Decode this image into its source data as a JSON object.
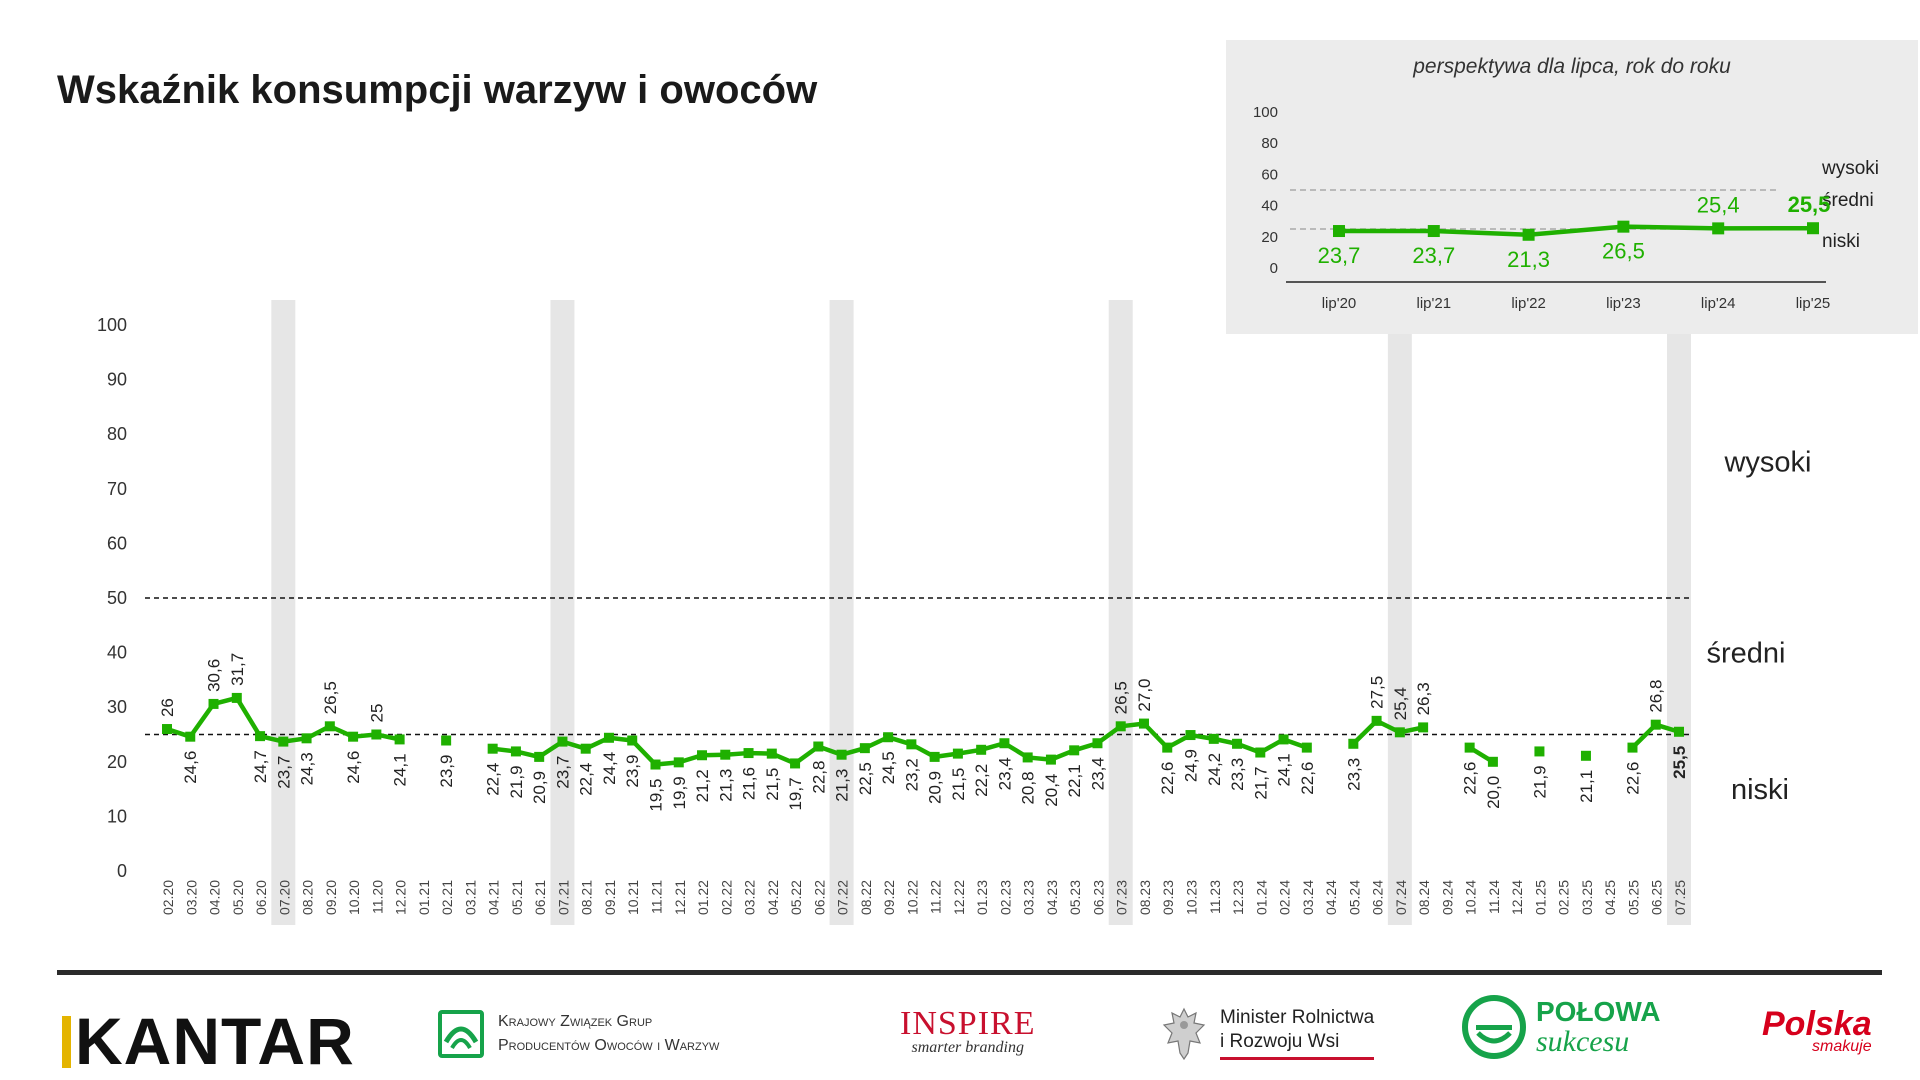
{
  "header": {
    "title": "Wskaźnik konsumpcji warzyw i owoców"
  },
  "colors": {
    "series": "#1fb000",
    "highlight_band": "#e6e6e6",
    "inset_bg": "#ececec",
    "kantar_accent": "#e4b400",
    "brand_red": "#c8102e",
    "brand_green": "#16a34a"
  },
  "chart_data": [
    {
      "type": "line",
      "title": "Wskaźnik konsumpcji warzyw i owoców",
      "ylim": [
        0,
        100
      ],
      "yticks": [
        0,
        10,
        20,
        30,
        40,
        50,
        60,
        70,
        80,
        90,
        100
      ],
      "x": [
        "02.20",
        "03.20",
        "04.20",
        "05.20",
        "06.20",
        "07.20",
        "08.20",
        "09.20",
        "10.20",
        "11.20",
        "12.20",
        "01.21",
        "02.21",
        "03.21",
        "04.21",
        "05.21",
        "06.21",
        "07.21",
        "08.21",
        "09.21",
        "10.21",
        "11.21",
        "12.21",
        "01.22",
        "02.22",
        "03.22",
        "04.22",
        "05.22",
        "06.22",
        "07.22",
        "08.22",
        "09.22",
        "10.22",
        "11.22",
        "12.22",
        "01.23",
        "02.23",
        "03.23",
        "04.23",
        "05.23",
        "06.23",
        "07.23",
        "08.23",
        "09.23",
        "10.23",
        "11.23",
        "12.23",
        "01.24",
        "02.24",
        "03.24",
        "04.24",
        "05.24",
        "06.24",
        "07.24",
        "08.24",
        "09.24",
        "10.24",
        "11.24",
        "12.24",
        "01.25",
        "02.25",
        "03.25",
        "04.25",
        "05.25",
        "06.25",
        "07.25"
      ],
      "values": [
        26,
        24.6,
        30.6,
        31.7,
        24.7,
        23.7,
        24.3,
        26.5,
        24.6,
        25,
        24.1,
        null,
        23.9,
        null,
        22.4,
        21.9,
        20.9,
        23.7,
        22.4,
        24.4,
        23.9,
        19.5,
        19.9,
        21.2,
        21.3,
        21.6,
        21.5,
        19.7,
        22.8,
        21.3,
        22.5,
        24.5,
        23.2,
        20.9,
        21.5,
        22.2,
        23.4,
        20.8,
        20.4,
        22.1,
        23.4,
        26.5,
        27.0,
        22.6,
        24.9,
        24.2,
        23.3,
        21.7,
        24.1,
        22.6,
        null,
        23.3,
        27.5,
        25.4,
        26.3,
        null,
        22.6,
        20.0,
        null,
        21.9,
        null,
        21.1,
        null,
        22.6,
        26.8,
        25.5
      ],
      "labels": [
        "26",
        "24,6",
        "30,6",
        "31,7",
        "24,7",
        "23,7",
        "24,3",
        "26,5",
        "24,6",
        "25",
        "24,1",
        "",
        "23,9",
        "",
        "22,4",
        "21,9",
        "20,9",
        "23,7",
        "22,4",
        "24,4",
        "23,9",
        "19,5",
        "19,9",
        "21,2",
        "21,3",
        "21,6",
        "21,5",
        "19,7",
        "22,8",
        "21,3",
        "22,5",
        "24,5",
        "23,2",
        "20,9",
        "21,5",
        "22,2",
        "23,4",
        "20,8",
        "20,4",
        "22,1",
        "23,4",
        "26,5",
        "27,0",
        "22,6",
        "24,9",
        "24,2",
        "23,3",
        "21,7",
        "24,1",
        "22,6",
        "",
        "23,3",
        "27,5",
        "25,4",
        "26,3",
        "",
        "22,6",
        "20,0",
        "",
        "21,9",
        "",
        "21,1",
        "",
        "22,6",
        "26,8",
        "25,5"
      ],
      "highlighted_x": [
        "07.20",
        "07.21",
        "07.22",
        "07.23",
        "07.24",
        "07.25"
      ],
      "reference_lines": [
        50,
        25
      ],
      "zones": [
        "wysoki",
        "średni",
        "niski"
      ]
    },
    {
      "type": "line",
      "title": "perspektywa dla lipca, rok do roku",
      "ylim": [
        0,
        100
      ],
      "yticks": [
        0,
        20,
        40,
        60,
        80,
        100
      ],
      "x": [
        "lip'20",
        "lip'21",
        "lip'22",
        "lip'23",
        "lip'24",
        "lip'25"
      ],
      "values": [
        23.7,
        23.7,
        21.3,
        26.5,
        25.4,
        25.5
      ],
      "labels": [
        "23,7",
        "23,7",
        "21,3",
        "26,5",
        "25,4",
        "25,5"
      ],
      "reference_lines": [
        50,
        25
      ],
      "zones": [
        "wysoki",
        "średni",
        "niski"
      ]
    }
  ],
  "footer": {
    "kantar": "KANTAR",
    "kzgp_line1": "Krajowy Związek Grup",
    "kzgp_line2": "Producentów Owoców i Warzyw",
    "inspire": "INSPIRE",
    "inspire_sub": "smarter branding",
    "minister_line1": "Minister Rolnictwa",
    "minister_line2": "i Rozwoju Wsi",
    "polowa_line1": "POŁOWA",
    "polowa_line2": "sukcesu",
    "polska": "Polska",
    "polska_sub": "smakuje"
  }
}
